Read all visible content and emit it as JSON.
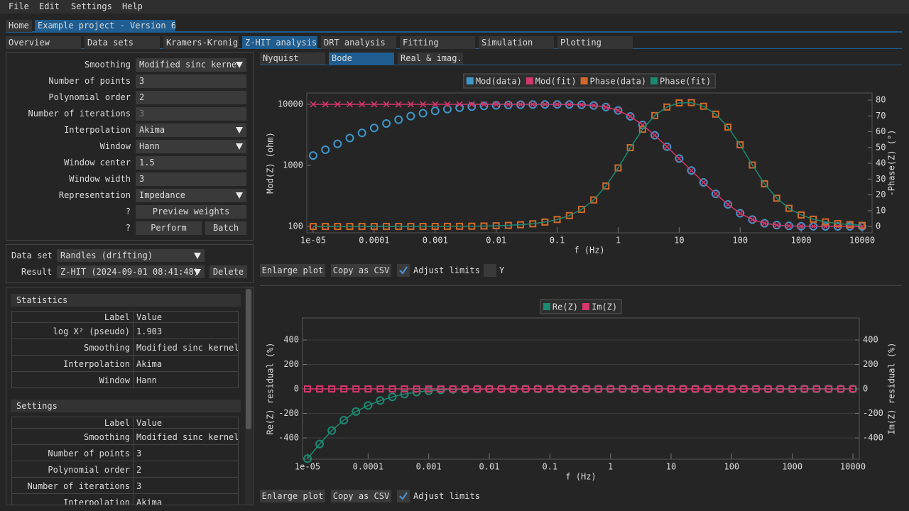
{
  "menu": [
    "File",
    "Edit",
    "Settings",
    "Help"
  ],
  "project_tabs": [
    "Home",
    "Example project - Version 6"
  ],
  "tabs": [
    "Overview",
    "Data sets",
    "Kramers-Kronig",
    "Z-HIT analysis",
    "DRT analysis",
    "Fitting",
    "Simulation",
    "Plotting"
  ],
  "settings_form": [
    {
      "label": "Smoothing",
      "value": "Modified sinc kerne"
    },
    {
      "label": "Number of points",
      "value": "3"
    },
    {
      "label": "Polynomial order",
      "value": "2"
    },
    {
      "label": "Number of iterations",
      "value": "3"
    },
    {
      "label": "Interpolation",
      "value": "Akima"
    },
    {
      "label": "Window",
      "value": "Hann"
    },
    {
      "label": "Window center",
      "value": "1.5"
    },
    {
      "label": "Window width",
      "value": "3"
    },
    {
      "label": "Representation",
      "value": "Impedance"
    }
  ],
  "actions": [
    {
      "help": "?",
      "button": "Preview weights"
    },
    {
      "help": "?",
      "button": "Perform"
    }
  ],
  "batch": "Batch",
  "data_set": {
    "label": "Data set",
    "value": "Randles (drifting)"
  },
  "result": {
    "label": "Result",
    "value": "Z-HIT (2024-09-01 08:41:48)"
  },
  "delete": "Delete",
  "statistics": {
    "title": "Statistics",
    "header": [
      "Label",
      "Value"
    ],
    "rows": [
      [
        "log X² (pseudo)",
        "1.903"
      ],
      [
        "Smoothing",
        "Modified sinc kernel"
      ],
      [
        "Interpolation",
        "Akima"
      ],
      [
        "Window",
        "Hann"
      ]
    ]
  },
  "settings_table": {
    "title": "Settings",
    "header": [
      "Label",
      "Value"
    ],
    "rows": [
      [
        "Smoothing",
        "Modified sinc kernel"
      ],
      [
        "Number of points",
        "3"
      ],
      [
        "Polynomial order",
        "2"
      ],
      [
        "Number of iterations",
        "3"
      ],
      [
        "Interpolation",
        "Akima"
      ]
    ]
  },
  "plot_tabs": [
    "Nyquist",
    "Bode",
    "Real & imag."
  ],
  "plot_controls": {
    "enlarge": "Enlarge plot",
    "copy": "Copy as CSV",
    "adjust": "Adjust limits",
    "adjust_checked": true,
    "y": "Y",
    "y_checked": false
  },
  "chart_data": [
    {
      "type": "line",
      "xlabel": "f (Hz)",
      "ylabel": "Mod(Z) (ohm)",
      "y2label": "-Phase(Z) (°)",
      "xscale": "log",
      "yscale": "log",
      "grid": false,
      "legend": "top",
      "x": [
        1e-05,
        1.585e-05,
        2.512e-05,
        3.981e-05,
        6.31e-05,
        0.0001,
        0.0001585,
        0.0002512,
        0.0003981,
        0.000631,
        0.001,
        0.001585,
        0.002512,
        0.003981,
        0.00631,
        0.01,
        0.01585,
        0.02512,
        0.03981,
        0.0631,
        0.1,
        0.1585,
        0.2512,
        0.3981,
        0.631,
        1,
        1.585,
        2.512,
        3.981,
        6.31,
        10,
        15.85,
        25.12,
        39.81,
        63.1,
        100,
        158.5,
        251.2,
        398.1,
        631,
        1000,
        1585,
        2512,
        3981,
        6310,
        10000
      ],
      "series": [
        {
          "name": "Mod(data)",
          "color": "#3d97cc",
          "marker": "circle",
          "line": false,
          "values": [
            1450,
            1800,
            2250,
            2800,
            3400,
            4100,
            4850,
            5600,
            6400,
            7150,
            7800,
            8350,
            8800,
            9150,
            9400,
            9600,
            9750,
            9850,
            9920,
            9960,
            9971,
            9926,
            9819,
            9561,
            8996,
            7927,
            6342,
            4597,
            3105,
            2021,
            1293,
            823.6,
            526.4,
            341.3,
            229,
            164,
            129.4,
            112.6,
            105.2,
            102.1,
            100.8,
            100.3,
            100.1,
            100.1,
            100,
            100
          ]
        },
        {
          "name": "Mod(fit)",
          "color": "#d3376b",
          "marker": "cross",
          "line": true,
          "values": [
            10000,
            10000,
            10000,
            10000,
            10000,
            10000,
            10000,
            10000,
            10000,
            10000,
            10000,
            10000,
            10000,
            10000,
            10000,
            10000,
            9999,
            9998,
            9995,
            9988,
            9971,
            9926,
            9819,
            9561,
            8996,
            7927,
            6342,
            4597,
            3105,
            2021,
            1293,
            823.6,
            526.4,
            341.3,
            229,
            164,
            129.4,
            112.6,
            105.2,
            102.1,
            100.8,
            100.3,
            100.1,
            100.1,
            100,
            100
          ]
        },
        {
          "name": "Phase(data)",
          "color": "#d2692a",
          "marker": "square",
          "line": false,
          "axis": "y2",
          "values": [
            0,
            0,
            0,
            0,
            0,
            0,
            0.01,
            0.01,
            0.02,
            0.03,
            0.04,
            0.07,
            0.11,
            0.17,
            0.28,
            0.44,
            0.69,
            1.1,
            1.7,
            2.8,
            4.4,
            6.9,
            10.8,
            16.8,
            25.6,
            37.1,
            49.9,
            61.5,
            70.2,
            75.6,
            78.2,
            78.4,
            76.1,
            71.1,
            62.9,
            51.7,
            38.9,
            27,
            17.9,
            11.5,
            7.3,
            4.6,
            2.9,
            1.8,
            1.2,
            0.7
          ]
        },
        {
          "name": "Phase(fit)",
          "color": "#1b8a72",
          "marker": "none",
          "line": true,
          "axis": "y2",
          "values": [
            0,
            0,
            0,
            0,
            0,
            0,
            0.01,
            0.01,
            0.02,
            0.03,
            0.04,
            0.07,
            0.11,
            0.17,
            0.28,
            0.44,
            0.69,
            1.1,
            1.7,
            2.8,
            4.4,
            6.9,
            10.8,
            16.8,
            25.6,
            37.1,
            49.9,
            61.5,
            70.2,
            75.6,
            78.2,
            78.4,
            76.1,
            71.1,
            62.9,
            51.7,
            38.9,
            27,
            17.9,
            11.5,
            7.3,
            4.6,
            2.9,
            1.8,
            1.2,
            0.7
          ]
        }
      ],
      "xlim": [
        7.86e-06,
        14550
      ],
      "xticks": [
        {
          "value": 1e-05,
          "label": "1e-05"
        },
        0.0001,
        0.001,
        0.01,
        0.1,
        1,
        10,
        100,
        1000,
        10000
      ],
      "ylim": [
        78.6,
        15330
      ],
      "yticks": [
        100,
        1000,
        10000
      ],
      "y2lim": [
        -4,
        84.5
      ],
      "y2ticks": [
        0,
        10,
        20,
        30,
        40,
        50,
        60,
        70,
        80
      ]
    },
    {
      "type": "line",
      "xlabel": "f (Hz)",
      "ylabel": "Re(Z) residual (%)",
      "y2label": "Im(Z) residual (%)",
      "xscale": "log",
      "yscale": "linear",
      "grid": true,
      "legend": "top",
      "x": [
        1e-05,
        1.585e-05,
        2.512e-05,
        3.981e-05,
        6.31e-05,
        0.0001,
        0.0001585,
        0.0002512,
        0.0003981,
        0.000631,
        0.001,
        0.001585,
        0.002512,
        0.003981,
        0.00631,
        0.01,
        0.01585,
        0.02512,
        0.03981,
        0.0631,
        0.1,
        0.1585,
        0.2512,
        0.3981,
        0.631,
        1,
        1.585,
        2.512,
        3.981,
        6.31,
        10,
        15.85,
        25.12,
        39.81,
        63.1,
        100,
        158.5,
        251.2,
        398.1,
        631,
        1000,
        1585,
        2512,
        3981,
        6310,
        10000
      ],
      "series": [
        {
          "name": "Re(Z)",
          "color": "#1b8a72",
          "marker": "circle",
          "line": true,
          "values": [
            -570,
            -450,
            -340,
            -255,
            -185,
            -135,
            -95,
            -65,
            -42,
            -26,
            -15,
            -8,
            -4,
            -2,
            -1,
            0,
            0,
            0,
            0,
            0,
            0,
            0,
            0,
            0,
            0,
            0,
            0,
            0,
            0,
            0,
            0,
            0,
            0,
            0,
            0,
            0,
            0,
            0,
            0,
            0,
            0,
            0,
            0,
            0,
            0,
            0
          ]
        },
        {
          "name": "Im(Z)",
          "color": "#d3376b",
          "marker": "square",
          "line": true,
          "axis": "y2",
          "values": [
            0,
            0,
            0,
            0,
            0,
            0,
            0,
            0,
            0,
            0,
            0,
            0,
            0,
            0,
            0,
            0,
            0,
            0,
            0,
            0,
            0,
            0,
            0,
            0,
            0,
            0,
            0,
            0,
            0,
            0,
            0,
            0,
            0,
            0,
            0,
            0,
            0,
            0,
            0,
            0,
            0,
            0,
            0,
            0,
            0,
            0
          ]
        }
      ],
      "xlim": [
        8.28e-06,
        12750
      ],
      "xticks": [
        {
          "value": 1e-05,
          "label": "1e-05"
        },
        0.0001,
        0.001,
        0.01,
        0.1,
        1,
        10,
        100,
        1000,
        10000
      ],
      "ylim": [
        -574,
        580
      ],
      "yticks": [
        -400,
        -200,
        0,
        200,
        400
      ],
      "y2lim": [
        -574,
        580
      ],
      "y2ticks": [
        -400,
        -200,
        0,
        200,
        400
      ]
    }
  ]
}
